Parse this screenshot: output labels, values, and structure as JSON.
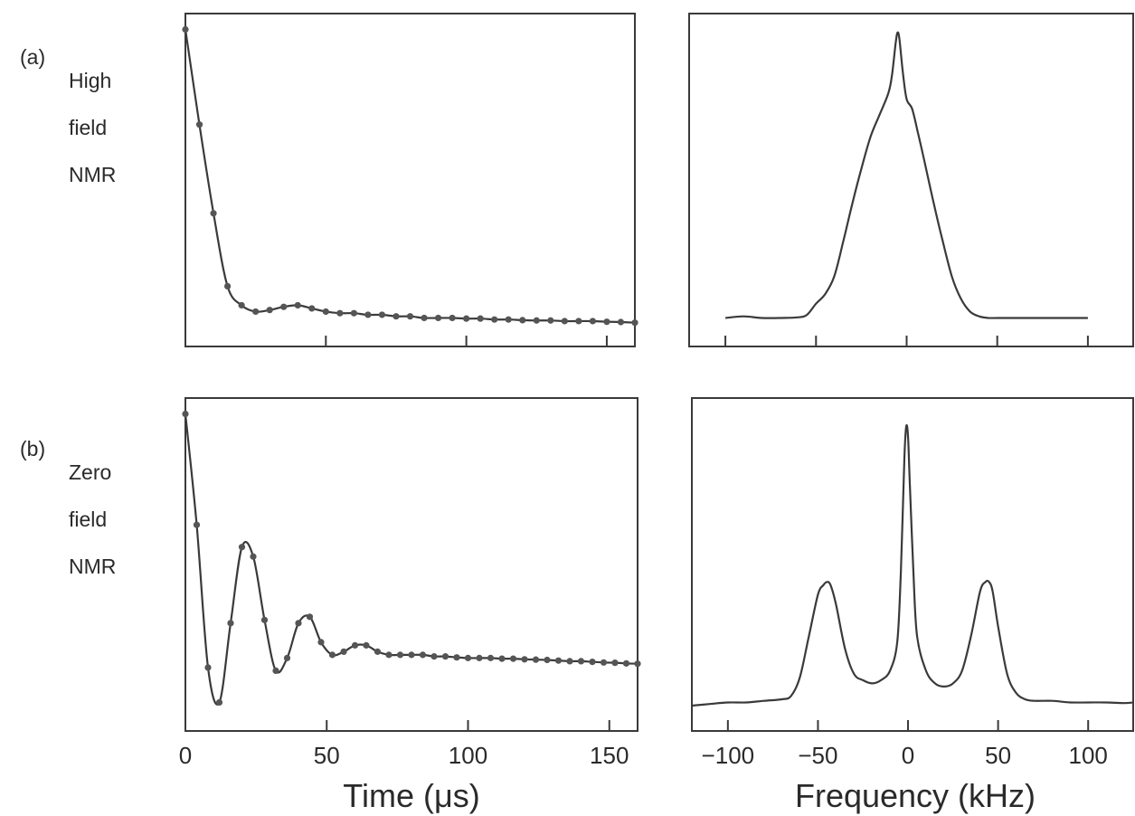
{
  "row_labels": {
    "a": {
      "tag": "(a)",
      "lines": [
        "High",
        "field",
        "NMR"
      ]
    },
    "b": {
      "tag": "(b)",
      "lines": [
        "Zero",
        "field",
        "NMR"
      ]
    }
  },
  "x_axis_titles": {
    "time": "Time (μs)",
    "frequency": "Frequency (kHz)"
  },
  "colors": {
    "ink": "#3a3a3a",
    "marker": "#555555"
  },
  "chart_data": [
    {
      "id": "a-time",
      "panel": "a",
      "type": "line",
      "markers": true,
      "xlabel": "",
      "ylabel": "",
      "xlim": [
        0,
        160
      ],
      "ylim": [
        0,
        1.05
      ],
      "x_ticks": [
        0,
        50,
        100,
        150
      ],
      "x_tick_labels_shown": false,
      "x": [
        0,
        5,
        10,
        15,
        20,
        25,
        30,
        35,
        40,
        45,
        50,
        55,
        60,
        65,
        70,
        75,
        80,
        85,
        90,
        95,
        100,
        105,
        110,
        115,
        120,
        125,
        130,
        135,
        140,
        145,
        150,
        155,
        160
      ],
      "y": [
        1.0,
        0.7,
        0.42,
        0.19,
        0.13,
        0.11,
        0.115,
        0.125,
        0.13,
        0.12,
        0.11,
        0.105,
        0.105,
        0.1,
        0.1,
        0.095,
        0.095,
        0.09,
        0.09,
        0.09,
        0.088,
        0.088,
        0.085,
        0.085,
        0.083,
        0.082,
        0.082,
        0.08,
        0.08,
        0.08,
        0.078,
        0.077,
        0.075
      ]
    },
    {
      "id": "a-freq",
      "panel": "a",
      "type": "line",
      "markers": false,
      "xlabel": "",
      "ylabel": "",
      "xlim": [
        -120,
        125
      ],
      "ylim": [
        0,
        1.05
      ],
      "x_ticks": [
        -100,
        -50,
        0,
        50,
        100
      ],
      "x_tick_labels_shown": false,
      "x": [
        -100,
        -90,
        -80,
        -70,
        -60,
        -55,
        -50,
        -45,
        -40,
        -35,
        -30,
        -25,
        -20,
        -15,
        -10,
        -8,
        -6,
        -5,
        -4,
        -2,
        0,
        3,
        6,
        10,
        15,
        20,
        25,
        30,
        35,
        40,
        45,
        50,
        55,
        60,
        70,
        80,
        90,
        100
      ],
      "y": [
        0.09,
        0.095,
        0.09,
        0.09,
        0.092,
        0.1,
        0.135,
        0.165,
        0.22,
        0.33,
        0.45,
        0.56,
        0.66,
        0.73,
        0.8,
        0.86,
        0.96,
        0.99,
        0.97,
        0.86,
        0.78,
        0.75,
        0.68,
        0.58,
        0.45,
        0.33,
        0.22,
        0.15,
        0.11,
        0.095,
        0.09,
        0.09,
        0.09,
        0.09,
        0.09,
        0.09,
        0.09,
        0.09
      ]
    },
    {
      "id": "b-time",
      "panel": "b",
      "type": "line",
      "markers": true,
      "xlabel": "",
      "ylabel": "",
      "xlim": [
        0,
        160
      ],
      "ylim": [
        0,
        1.05
      ],
      "x_ticks": [
        0,
        50,
        100,
        150
      ],
      "x_tick_labels": [
        "0",
        "50",
        "100",
        "150"
      ],
      "x": [
        0,
        4,
        8,
        12,
        16,
        20,
        24,
        28,
        32,
        36,
        40,
        44,
        48,
        52,
        56,
        60,
        64,
        68,
        72,
        76,
        80,
        84,
        88,
        92,
        96,
        100,
        104,
        108,
        112,
        116,
        120,
        124,
        128,
        132,
        136,
        140,
        144,
        148,
        152,
        156,
        160
      ],
      "y": [
        1.0,
        0.65,
        0.2,
        0.09,
        0.34,
        0.58,
        0.55,
        0.35,
        0.19,
        0.23,
        0.34,
        0.36,
        0.28,
        0.24,
        0.25,
        0.27,
        0.27,
        0.25,
        0.24,
        0.24,
        0.24,
        0.24,
        0.235,
        0.235,
        0.232,
        0.23,
        0.23,
        0.23,
        0.228,
        0.228,
        0.226,
        0.225,
        0.224,
        0.222,
        0.22,
        0.22,
        0.218,
        0.216,
        0.215,
        0.213,
        0.212
      ]
    },
    {
      "id": "b-freq",
      "panel": "b",
      "type": "line",
      "markers": false,
      "xlabel": "",
      "ylabel": "",
      "xlim": [
        -120,
        125
      ],
      "ylim": [
        0,
        1.05
      ],
      "x_ticks": [
        -100,
        -50,
        0,
        50,
        100
      ],
      "x_tick_labels": [
        "−100",
        "−50",
        "0",
        "50",
        "100"
      ],
      "x": [
        -120,
        -110,
        -100,
        -90,
        -80,
        -70,
        -65,
        -60,
        -55,
        -50,
        -47,
        -45,
        -43,
        -40,
        -35,
        -30,
        -25,
        -20,
        -15,
        -10,
        -6,
        -4,
        -2,
        -1,
        0,
        1,
        3,
        5,
        10,
        15,
        20,
        25,
        30,
        35,
        40,
        43,
        45,
        47,
        50,
        55,
        60,
        65,
        70,
        80,
        90,
        100,
        110,
        120,
        125
      ],
      "y": [
        0.08,
        0.085,
        0.09,
        0.09,
        0.095,
        0.1,
        0.11,
        0.17,
        0.3,
        0.43,
        0.46,
        0.47,
        0.46,
        0.4,
        0.26,
        0.18,
        0.16,
        0.15,
        0.16,
        0.19,
        0.28,
        0.5,
        0.86,
        0.96,
        0.93,
        0.78,
        0.5,
        0.3,
        0.19,
        0.15,
        0.14,
        0.15,
        0.19,
        0.3,
        0.44,
        0.47,
        0.47,
        0.44,
        0.33,
        0.18,
        0.12,
        0.1,
        0.095,
        0.095,
        0.09,
        0.09,
        0.09,
        0.088,
        0.09
      ]
    }
  ]
}
